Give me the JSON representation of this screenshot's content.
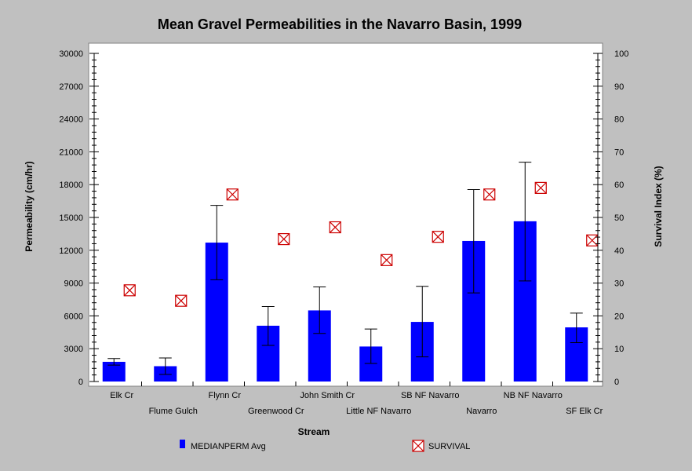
{
  "chart_data": {
    "type": "bar",
    "title": "Mean Gravel Permeabilities in the Navarro Basin, 1999",
    "xlabel": "Stream",
    "ylabel": "Permeability (cm/hr)",
    "y2label": "Survival Index (%)",
    "ylim": [
      0,
      30000
    ],
    "y2lim": [
      0,
      100
    ],
    "yticks": [
      "0",
      "3000",
      "6000",
      "9000",
      "12000",
      "15000",
      "18000",
      "21000",
      "24000",
      "27000",
      "30000"
    ],
    "y2ticks": [
      "0",
      "10",
      "20",
      "30",
      "40",
      "50",
      "60",
      "70",
      "80",
      "90",
      "100"
    ],
    "grid": false,
    "legend_position": "bottom",
    "categories": [
      "Elk Cr",
      "Flume Gulch",
      "Flynn Cr",
      "Greenwood Cr",
      "John Smith Cr",
      "Little NF Navarro",
      "SB NF Navarro",
      "Navarro",
      "NB NF Navarro",
      "SF Elk Cr"
    ],
    "series": [
      {
        "name": "MEDIANPERM Avg",
        "kind": "bar",
        "axis": "left",
        "color": "#0000ff",
        "values": [
          1800,
          1400,
          12700,
          5100,
          6500,
          3200,
          5450,
          12850,
          14650,
          4950
        ],
        "error_low": [
          1500,
          650,
          9300,
          3300,
          4400,
          1650,
          2250,
          8100,
          9200,
          3550
        ],
        "error_high": [
          2100,
          2150,
          16100,
          6850,
          8650,
          4800,
          8700,
          17550,
          20050,
          6250
        ]
      },
      {
        "name": "SURVIVAL",
        "kind": "marker",
        "axis": "right",
        "color": "#cc0000",
        "values": [
          27.8,
          24.6,
          57.0,
          43.4,
          47.0,
          37.0,
          44.1,
          57.0,
          59.0,
          43.0
        ]
      }
    ]
  }
}
